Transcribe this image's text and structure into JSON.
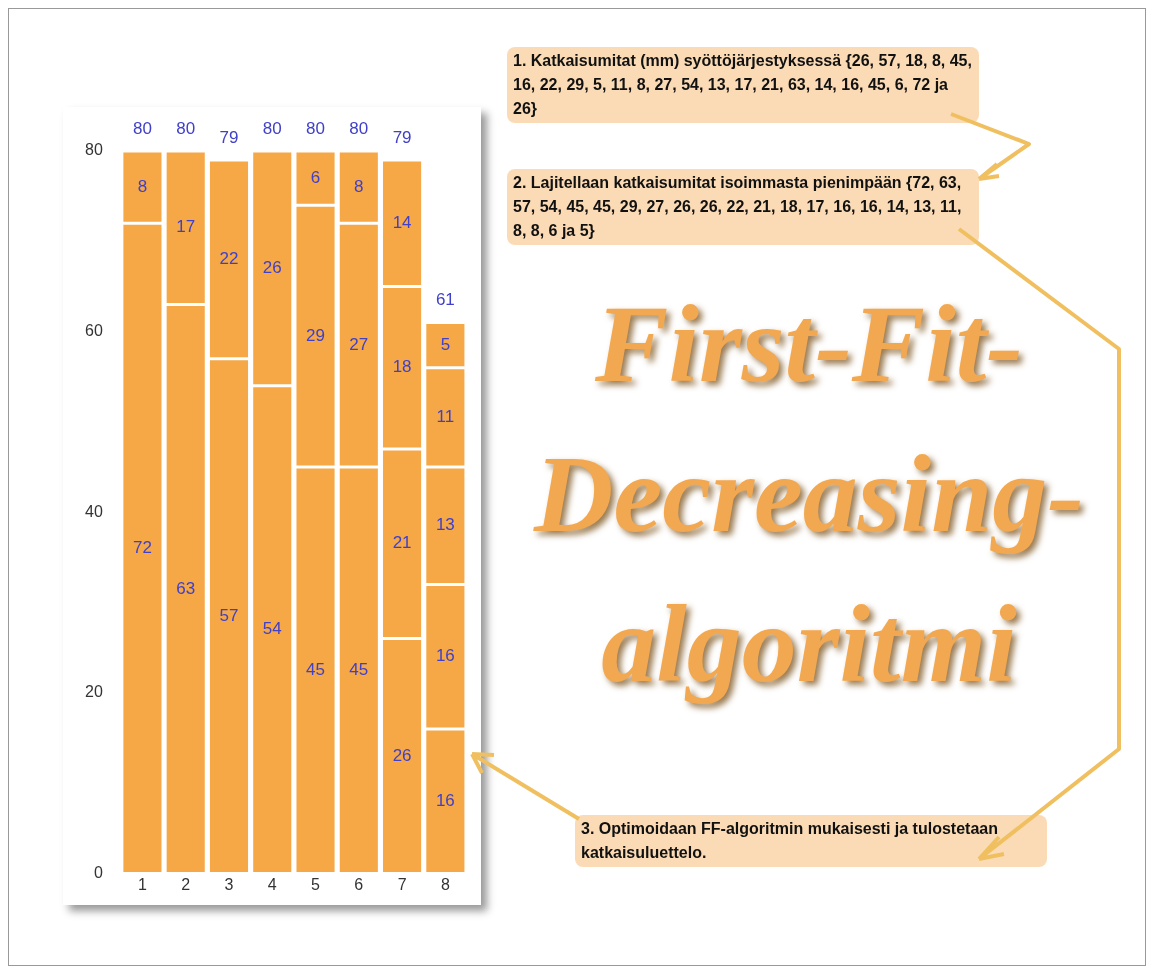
{
  "chart_data": {
    "type": "bar",
    "title": "First-Fit-Decreasing-algoritmi",
    "stacked": true,
    "categories": [
      "1",
      "2",
      "3",
      "4",
      "5",
      "6",
      "7",
      "8"
    ],
    "series": [
      {
        "color": "#f5a845",
        "values": [
          72,
          63,
          57,
          54,
          45,
          45,
          26,
          16
        ]
      },
      {
        "color": "#f5a845",
        "values": [
          8,
          17,
          22,
          26,
          29,
          27,
          21,
          16
        ]
      },
      {
        "color": "#f5a845",
        "values": [
          null,
          null,
          null,
          null,
          6,
          8,
          18,
          13
        ]
      },
      {
        "color": "#f5a845",
        "values": [
          null,
          null,
          null,
          null,
          null,
          null,
          14,
          11
        ]
      },
      {
        "color": "#f5a845",
        "values": [
          null,
          null,
          null,
          null,
          null,
          null,
          null,
          5
        ]
      }
    ],
    "ylim": [
      0,
      80
    ],
    "yticks": [
      0,
      20,
      40,
      60,
      80
    ],
    "grid": false,
    "legend": false,
    "data_labels": true,
    "totals": [
      "80",
      "80",
      "79",
      "80",
      "80",
      "80",
      "79",
      "61"
    ],
    "annotations": [
      "1. Katkaisumitat (mm) syöttöjärjestyksessä {26, 57, 18, 8, 45, 16, 22, 29, 5, 11, 8, 27, 54, 13, 17, 21, 63, 14, 16, 45, 6, 72 ja 26}",
      "2. Lajitellaan katkaisumitat isoimmasta pienimpään {72, 63, 57, 54, 45, 45, 29, 27, 26, 26, 22, 21, 18, 17, 16, 16, 14, 13, 11, 8, 8, 6 ja 5}",
      "3. Optimoidaan FF-algoritmin mukaisesti ja tulostetaan katkaisuluettelo."
    ]
  }
}
